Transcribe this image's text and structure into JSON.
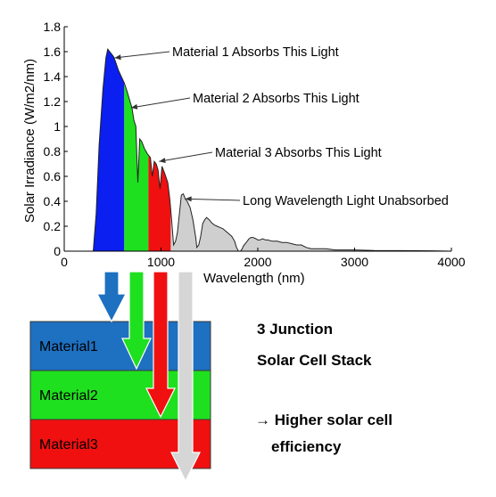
{
  "chart_data": {
    "type": "area",
    "xlabel": "Wavelength (nm)",
    "ylabel": "Solar Irradiance (W/m2/nm)",
    "xlim": [
      0,
      4000
    ],
    "ylim": [
      0,
      1.8
    ],
    "xticks": [
      0,
      1000,
      2000,
      3000,
      4000
    ],
    "yticks": [
      0,
      0.2,
      0.4,
      0.6,
      0.8,
      1,
      1.2,
      1.4,
      1.6,
      1.8
    ],
    "xtick_labels": [
      "0",
      "1000",
      "2000",
      "3000",
      "4000"
    ],
    "ytick_labels": [
      "0",
      "0.2",
      "0.4",
      "0.6",
      "0.8",
      "1",
      "1.2",
      "1.4",
      "1.6",
      "1.8"
    ],
    "grid": false,
    "spectrum": {
      "x": [
        300,
        330,
        360,
        400,
        430,
        450,
        470,
        490,
        510,
        530,
        560,
        590,
        620,
        650,
        680,
        700,
        720,
        740,
        760,
        780,
        800,
        830,
        860,
        890,
        910,
        930,
        950,
        970,
        990,
        1010,
        1040,
        1070,
        1090,
        1110,
        1130,
        1150,
        1170,
        1190,
        1210,
        1230,
        1250,
        1270,
        1300,
        1330,
        1360,
        1370,
        1390,
        1410,
        1430,
        1450,
        1470,
        1500,
        1520,
        1550,
        1580,
        1610,
        1640,
        1670,
        1700,
        1730,
        1760,
        1780,
        1800,
        1820,
        1840,
        1850,
        1870,
        1890,
        1910,
        1930,
        1950,
        1980,
        2000,
        2020,
        2050,
        2080,
        2100,
        2150,
        2200,
        2250,
        2300,
        2350,
        2400,
        2450,
        2500,
        2550,
        2600,
        2700,
        2800,
        3000,
        3200,
        3500,
        3800,
        4000
      ],
      "y": [
        0,
        0.3,
        0.85,
        1.3,
        1.55,
        1.62,
        1.6,
        1.58,
        1.56,
        1.52,
        1.45,
        1.4,
        1.35,
        1.28,
        1.2,
        1.15,
        1.05,
        1.0,
        0.55,
        0.9,
        0.88,
        0.82,
        0.78,
        0.75,
        0.6,
        0.72,
        0.7,
        0.65,
        0.5,
        0.68,
        0.62,
        0.55,
        0.42,
        0.25,
        0.05,
        0.08,
        0.15,
        0.3,
        0.45,
        0.46,
        0.42,
        0.4,
        0.35,
        0.25,
        0.1,
        0.03,
        0.05,
        0.12,
        0.22,
        0.25,
        0.27,
        0.25,
        0.23,
        0.21,
        0.2,
        0.19,
        0.18,
        0.16,
        0.14,
        0.12,
        0.08,
        0.03,
        0.0,
        0.0,
        0.02,
        0.04,
        0.06,
        0.08,
        0.1,
        0.11,
        0.11,
        0.1,
        0.09,
        0.09,
        0.1,
        0.09,
        0.09,
        0.08,
        0.08,
        0.07,
        0.07,
        0.06,
        0.05,
        0.05,
        0.03,
        0.02,
        0.02,
        0.02,
        0.01,
        0.01,
        0.005,
        0.004,
        0.003,
        0.0
      ]
    },
    "bands": [
      {
        "label": "Material 1 Absorbs This Light",
        "color": "#0a1ff0",
        "from": 300,
        "to": 620
      },
      {
        "label": "Material 2 Absorbs This Light",
        "color": "#1fe01f",
        "from": 620,
        "to": 870
      },
      {
        "label": "Material 3 Absorbs This Light",
        "color": "#f01010",
        "from": 870,
        "to": 1100
      },
      {
        "label": "Long Wavelength Light Unabsorbed",
        "color": "#cfcfcf",
        "from": 1100,
        "to": 4000
      }
    ],
    "annotations": [
      {
        "text": "Material 1 Absorbs This Light",
        "target_x": 520,
        "target_y": 1.55
      },
      {
        "text": "Material 2 Absorbs This Light",
        "target_x": 690,
        "target_y": 1.15
      },
      {
        "text": "Material 3 Absorbs This Light",
        "target_x": 980,
        "target_y": 0.72
      },
      {
        "text": "Long Wavelength Light Unabsorbed",
        "target_x": 1250,
        "target_y": 0.42
      }
    ]
  },
  "stack": {
    "layers": [
      {
        "label": "Material1",
        "color": "#1e70c0"
      },
      {
        "label": "Material2",
        "color": "#1fe01f"
      },
      {
        "label": "Material3",
        "color": "#f01010"
      }
    ],
    "arrows": [
      {
        "color": "#1e70c0",
        "ends_in_layer": 1
      },
      {
        "color": "#1fe01f",
        "ends_in_layer": 2
      },
      {
        "color": "#f01010",
        "ends_in_layer": 3
      },
      {
        "color": "#d6d6d6",
        "ends_in_layer": 4
      }
    ]
  },
  "notes": {
    "line1": "3 Junction",
    "line2": "Solar Cell Stack",
    "line3": "→ Higher solar cell",
    "line4": "efficiency"
  }
}
